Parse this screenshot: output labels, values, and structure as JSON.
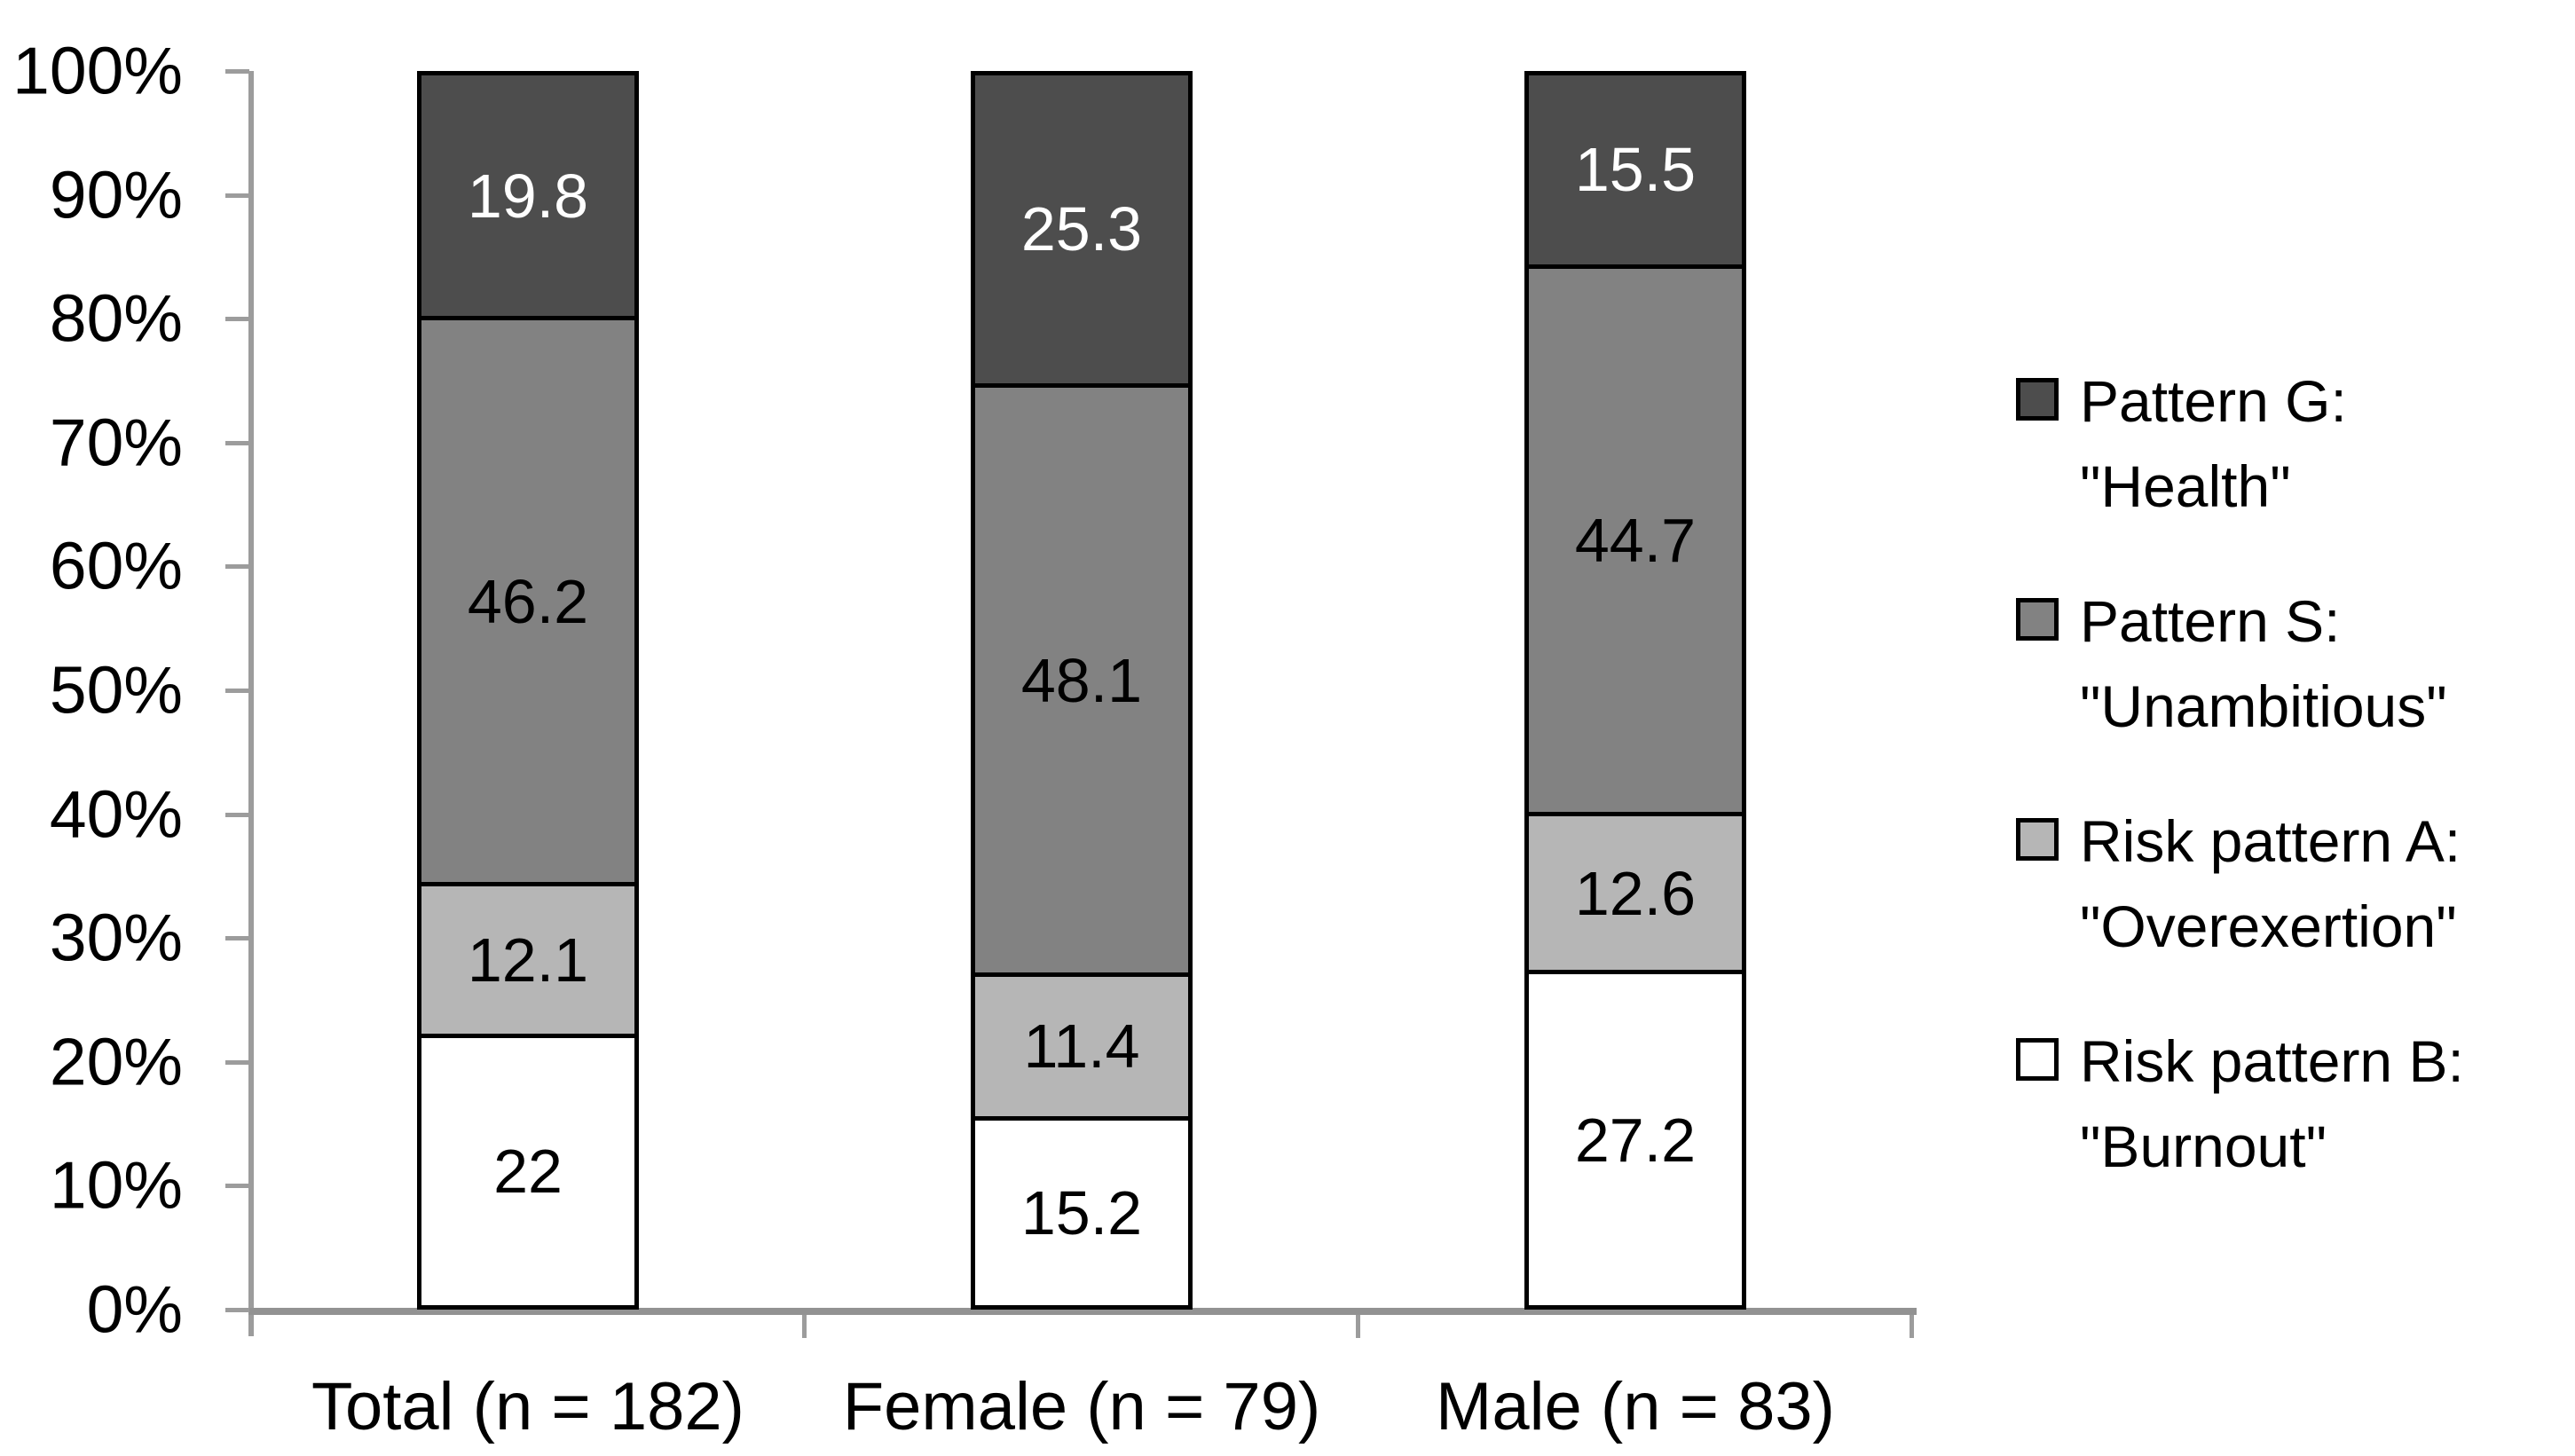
{
  "chart_data": {
    "type": "bar",
    "subtype": "stacked-100-percent-column",
    "title": "",
    "xlabel": "",
    "ylabel": "",
    "grid": false,
    "categories": [
      "Total (n = 182)",
      "Female (n = 79)",
      "Male (n = 83)"
    ],
    "series": [
      {
        "name": "Pattern G: \"Health\"",
        "color": "#4d4d4d",
        "label_color": "#ffffff",
        "values": [
          19.8,
          25.3,
          15.5
        ]
      },
      {
        "name": "Pattern S: \"Unambitious\"",
        "color": "#828282",
        "label_color": "#000000",
        "values": [
          46.2,
          48.1,
          44.7
        ]
      },
      {
        "name": "Risk pattern A: \"Overexertion\"",
        "color": "#b6b6b6",
        "label_color": "#000000",
        "values": [
          12.1,
          11.4,
          12.6
        ]
      },
      {
        "name": "Risk pattern B: \"Burnout\"",
        "color": "#ffffff",
        "label_color": "#000000",
        "values": [
          22,
          15.2,
          27.2
        ]
      }
    ],
    "stack_order_bottom_to_top": [
      "Risk pattern B: \"Burnout\"",
      "Risk pattern A: \"Overexertion\"",
      "Pattern S: \"Unambitious\"",
      "Pattern G: \"Health\""
    ],
    "y_axis": {
      "min": 0,
      "max": 100,
      "tick_step": 10,
      "tick_labels": [
        "0%",
        "10%",
        "20%",
        "30%",
        "40%",
        "50%",
        "60%",
        "70%",
        "80%",
        "90%",
        "100%"
      ]
    },
    "legend": {
      "position": "right",
      "items": [
        {
          "line1": "Pattern G:",
          "line2": "\"Health\""
        },
        {
          "line1": "Pattern S:",
          "line2": "\"Unambitious\""
        },
        {
          "line1": "Risk pattern A:",
          "line2": "\"Overexertion\""
        },
        {
          "line1": "Risk pattern B:",
          "line2": "\"Burnout\""
        }
      ]
    },
    "colors": {
      "axis_line": "#9c9c9c",
      "bar_border": "#000000",
      "text": "#000000"
    }
  }
}
